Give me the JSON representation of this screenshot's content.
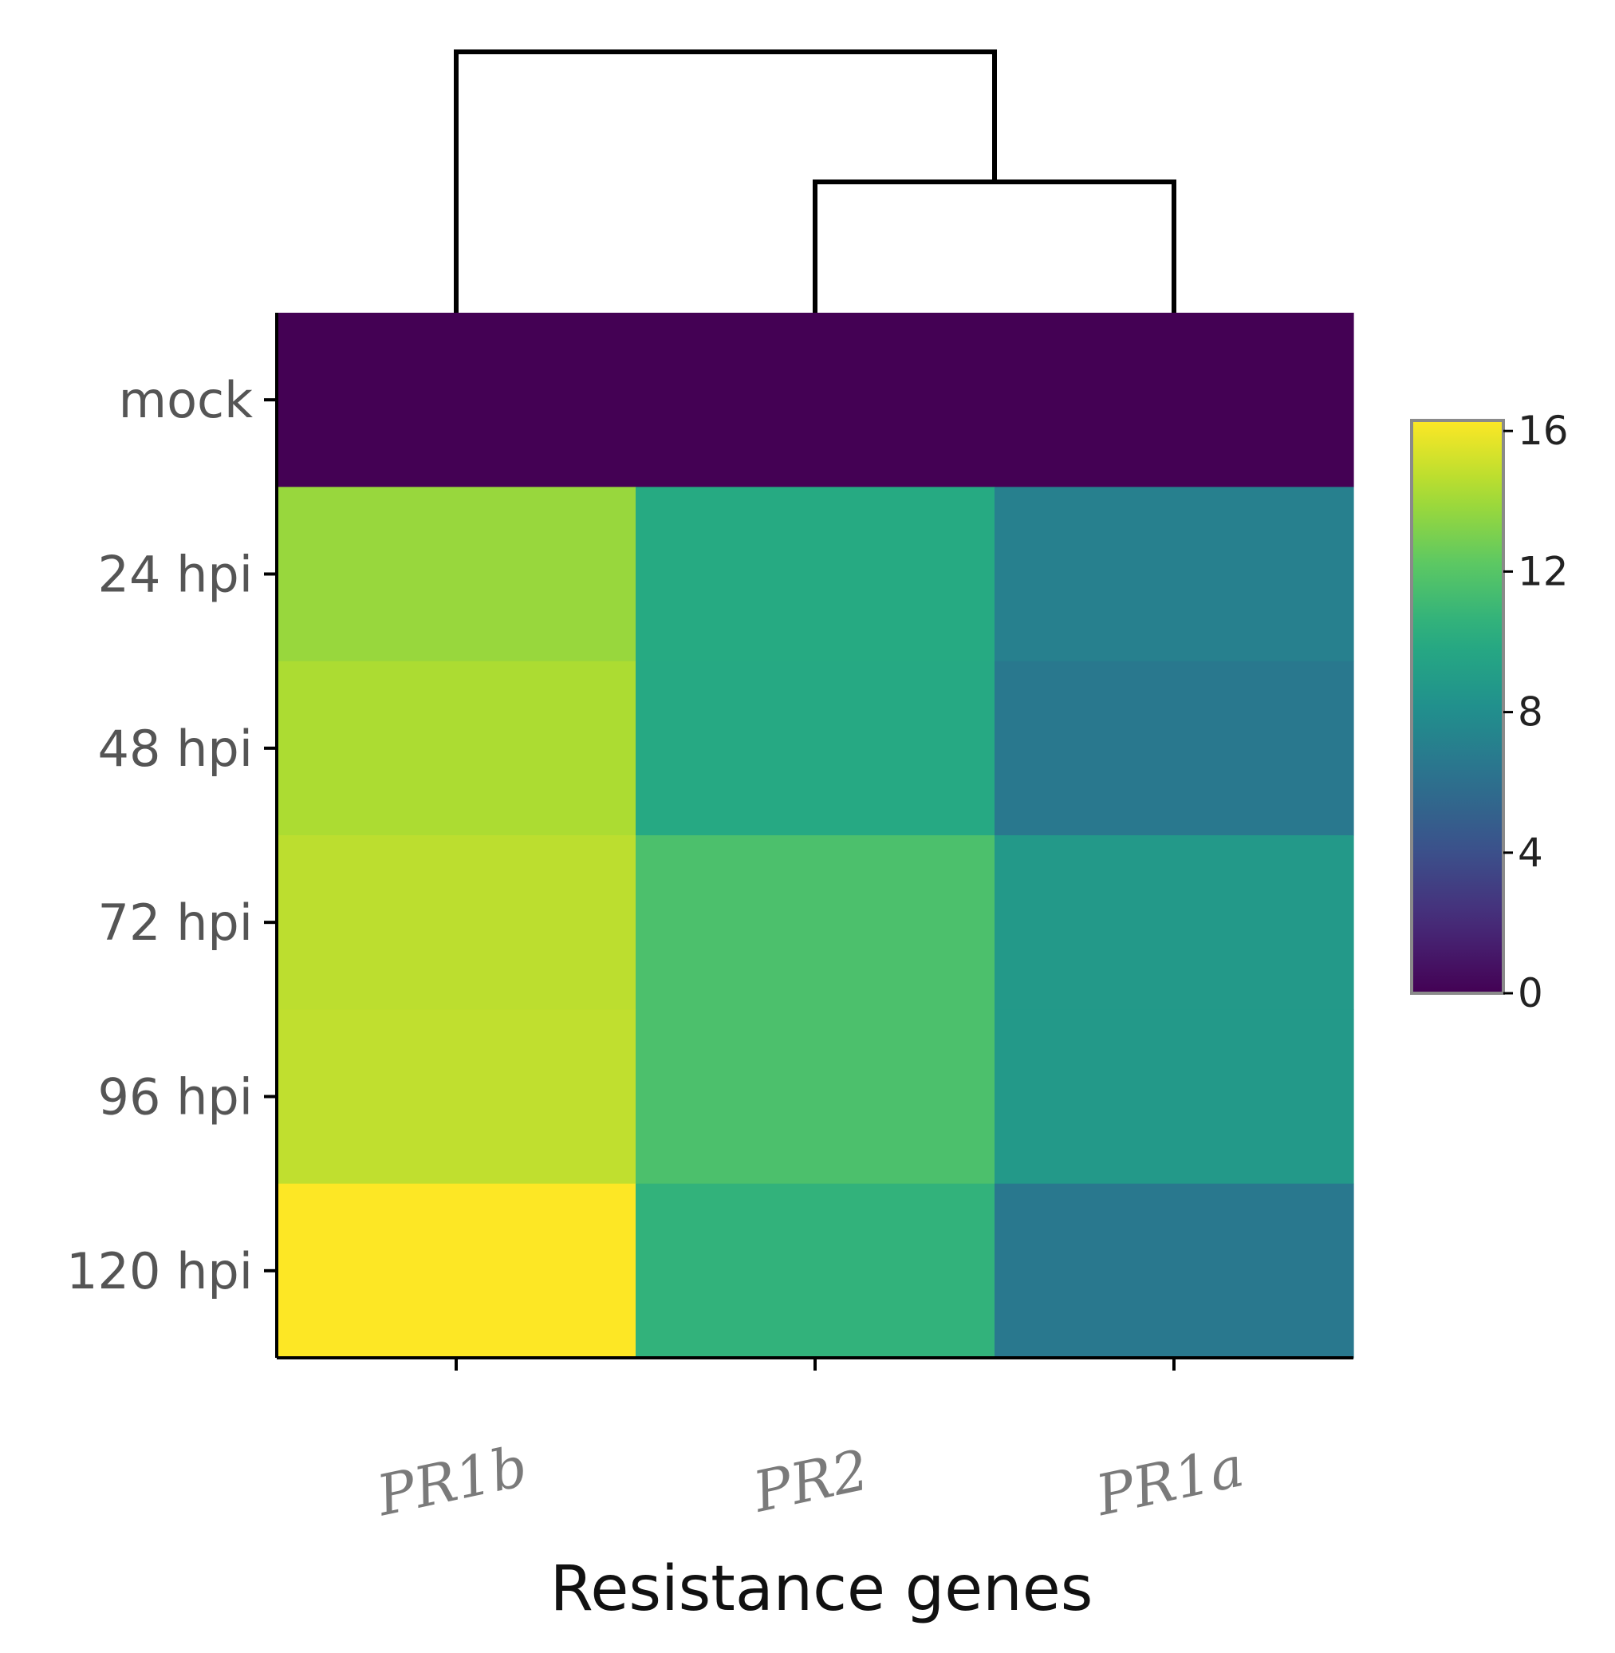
{
  "chart_data": {
    "type": "heatmap",
    "title": "",
    "xlabel": "Resistance genes",
    "ylabel": "",
    "rows": [
      "mock",
      "24 hpi",
      "48 hpi",
      "72 hpi",
      "96 hpi",
      "120 hpi"
    ],
    "columns": [
      "PR1b",
      "PR2",
      "PR1a"
    ],
    "values": [
      [
        0,
        0,
        0
      ],
      [
        13.8,
        10.0,
        7.1
      ],
      [
        14.3,
        9.9,
        6.6
      ],
      [
        14.7,
        11.6,
        8.8
      ],
      [
        14.8,
        11.6,
        8.8
      ],
      [
        16.3,
        10.6,
        6.6
      ]
    ],
    "colorscale": "viridis",
    "color_range": [
      0,
      16.3
    ],
    "colorbar_ticks": [
      0,
      4,
      8,
      12,
      16
    ],
    "colorbar_ticklabels": [
      "0",
      "4",
      "8",
      "12",
      "16"
    ],
    "colorbar_placement": "right",
    "dendrogram": {
      "position": "top",
      "merges": [
        [
          "PR2",
          "PR1a"
        ],
        [
          "PR1b",
          "PR2+PR1a"
        ]
      ]
    },
    "grid": false
  }
}
